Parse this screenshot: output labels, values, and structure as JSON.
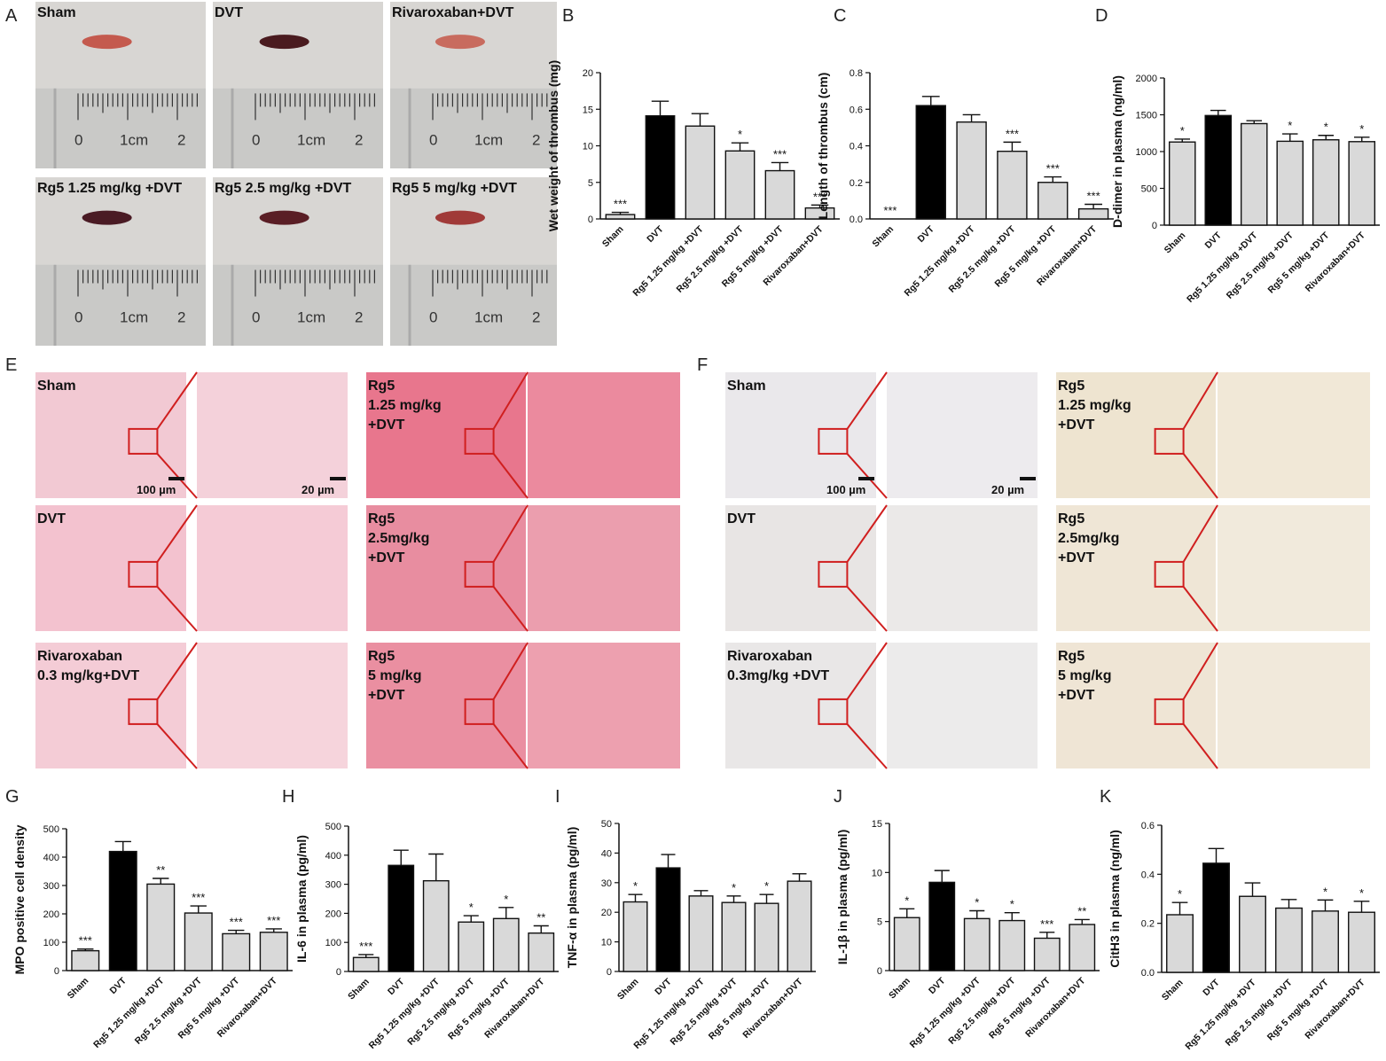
{
  "panel_letters": [
    "A",
    "B",
    "C",
    "D",
    "E",
    "F",
    "G",
    "H",
    "I",
    "J",
    "K"
  ],
  "photo_panels": {
    "labels": [
      "Sham",
      "DVT",
      "Rivaroxaban+DVT",
      "Rg5 1.25 mg/kg +DVT",
      "Rg5 2.5 mg/kg +DVT",
      "Rg5 5 mg/kg +DVT"
    ],
    "ruler_labels": [
      "0",
      "1cm",
      "2"
    ]
  },
  "histology_E": {
    "labels": [
      "Sham",
      "Rg5\n1.25 mg/kg\n+DVT",
      "DVT",
      "Rg5\n2.5mg/kg\n+DVT",
      "Rivaroxaban\n0.3 mg/kg+DVT",
      "Rg5\n5 mg/kg\n+DVT"
    ],
    "scale_bars": [
      "100 µm",
      "20 µm"
    ]
  },
  "histology_F": {
    "labels": [
      "Sham",
      "Rg5\n1.25 mg/kg\n+DVT",
      "DVT",
      "Rg5\n2.5mg/kg\n+DVT",
      "Rivaroxaban\n0.3mg/kg +DVT",
      "Rg5\n5 mg/kg\n+DVT"
    ],
    "scale_bars": [
      "100 µm",
      "20 µm"
    ]
  },
  "chart_data": [
    {
      "panel": "B",
      "type": "bar",
      "ylabel": "Wet weight of thrombus (mg)",
      "ylim": [
        0,
        20
      ],
      "yticks": [
        0,
        5,
        10,
        15,
        20
      ],
      "categories": [
        "Sham",
        "DVT",
        "Rg5 1.25 mg/kg +DVT",
        "Rg5 2.5 mg/kg +DVT",
        "Rg5 5 mg/kg +DVT",
        "Rivaroxaban+DVT"
      ],
      "values": [
        0.6,
        14.1,
        12.7,
        9.3,
        6.6,
        1.5
      ],
      "errors": [
        0.3,
        2.0,
        1.7,
        1.1,
        1.1,
        0.4
      ],
      "significance": [
        "***",
        "",
        "",
        "*",
        "***",
        "***"
      ],
      "colors": [
        "#d9d9d9",
        "#000000",
        "#d9d9d9",
        "#d9d9d9",
        "#d9d9d9",
        "#d9d9d9"
      ]
    },
    {
      "panel": "C",
      "type": "bar",
      "ylabel": "Length of thrombus (cm)",
      "ylim": [
        0,
        0.8
      ],
      "yticks": [
        "0.0",
        "0.2",
        "0.4",
        "0.6",
        "0.8"
      ],
      "categories": [
        "Sham",
        "DVT",
        "Rg5 1.25 mg/kg +DVT",
        "Rg5 2.5 mg/kg +DVT",
        "Rg5 5 mg/kg +DVT",
        "Rivaroxaban+DVT"
      ],
      "values": [
        0.0,
        0.62,
        0.53,
        0.37,
        0.2,
        0.055
      ],
      "errors": [
        0,
        0.05,
        0.04,
        0.05,
        0.03,
        0.025
      ],
      "significance": [
        "***",
        "",
        "",
        "***",
        "***",
        "***"
      ],
      "colors": [
        "#d9d9d9",
        "#000000",
        "#d9d9d9",
        "#d9d9d9",
        "#d9d9d9",
        "#d9d9d9"
      ]
    },
    {
      "panel": "D",
      "type": "bar",
      "ylabel": "D-dimer in plasma (ng/ml)",
      "ylim": [
        0,
        2000
      ],
      "yticks": [
        0,
        500,
        1000,
        1500,
        2000
      ],
      "categories": [
        "Sham",
        "DVT",
        "Rg5 1.25 mg/kg +DVT",
        "Rg5 2.5 mg/kg +DVT",
        "Rg5 5 mg/kg +DVT",
        "Rivaroxaban+DVT"
      ],
      "values": [
        1130,
        1490,
        1380,
        1140,
        1160,
        1135
      ],
      "errors": [
        40,
        70,
        40,
        100,
        60,
        60
      ],
      "significance": [
        "*",
        "",
        "",
        "*",
        "*",
        "*"
      ],
      "colors": [
        "#d9d9d9",
        "#000000",
        "#d9d9d9",
        "#d9d9d9",
        "#d9d9d9",
        "#d9d9d9"
      ]
    },
    {
      "panel": "G",
      "type": "bar",
      "ylabel": "MPO positive cell density",
      "ylim": [
        0,
        500
      ],
      "yticks": [
        0,
        100,
        200,
        300,
        400,
        500
      ],
      "categories": [
        "Sham",
        "DVT",
        "Rg5 1.25 mg/kg +DVT",
        "Rg5 2.5 mg/kg +DVT",
        "Rg5 5 mg/kg +DVT",
        "Rivaroxaban+DVT"
      ],
      "values": [
        70,
        420,
        305,
        203,
        130,
        135
      ],
      "errors": [
        6,
        35,
        20,
        25,
        12,
        12
      ],
      "significance": [
        "***",
        "",
        "**",
        "***",
        "***",
        "***"
      ],
      "colors": [
        "#d9d9d9",
        "#000000",
        "#d9d9d9",
        "#d9d9d9",
        "#d9d9d9",
        "#d9d9d9"
      ]
    },
    {
      "panel": "H",
      "type": "bar",
      "ylabel": "IL-6 in plasma (pg/ml)",
      "ylim": [
        0,
        500
      ],
      "yticks": [
        0,
        100,
        200,
        300,
        400,
        500
      ],
      "categories": [
        "Sham",
        "DVT",
        "Rg5 1.25 mg/kg +DVT",
        "Rg5 2.5 mg/kg +DVT",
        "Rg5 5 mg/kg +DVT",
        "Rivaroxaban+DVT"
      ],
      "values": [
        48,
        365,
        312,
        170,
        182,
        132
      ],
      "errors": [
        10,
        52,
        92,
        22,
        38,
        25
      ],
      "significance": [
        "***",
        "",
        "",
        "*",
        "*",
        "**"
      ],
      "colors": [
        "#d9d9d9",
        "#000000",
        "#d9d9d9",
        "#d9d9d9",
        "#d9d9d9",
        "#d9d9d9"
      ]
    },
    {
      "panel": "I",
      "type": "bar",
      "ylabel": "TNF-α in plasma (pg/ml)",
      "ylim": [
        0,
        50
      ],
      "yticks": [
        0,
        10,
        20,
        30,
        40,
        50
      ],
      "categories": [
        "Sham",
        "DVT",
        "Rg5 1.25 mg/kg +DVT",
        "Rg5 2.5 mg/kg +DVT",
        "Rg5 5 mg/kg +DVT",
        "Rivaroxaban+DVT"
      ],
      "values": [
        23.5,
        35,
        25.5,
        23.3,
        23,
        30.5
      ],
      "errors": [
        2.5,
        4.5,
        1.8,
        2.2,
        3.0,
        2.5
      ],
      "significance": [
        "*",
        "",
        "",
        "*",
        "*",
        ""
      ],
      "colors": [
        "#d9d9d9",
        "#000000",
        "#d9d9d9",
        "#d9d9d9",
        "#d9d9d9",
        "#d9d9d9"
      ]
    },
    {
      "panel": "J",
      "type": "bar",
      "ylabel": "IL-1β in plasma (pg/ml)",
      "ylim": [
        0,
        15
      ],
      "yticks": [
        0,
        5,
        10,
        15
      ],
      "categories": [
        "Sham",
        "DVT",
        "Rg5 1.25 mg/kg +DVT",
        "Rg5 2.5 mg/kg +DVT",
        "Rg5 5 mg/kg +DVT",
        "Rivaroxaban+DVT"
      ],
      "values": [
        5.4,
        9.0,
        5.3,
        5.1,
        3.3,
        4.7
      ],
      "errors": [
        0.9,
        1.2,
        0.8,
        0.8,
        0.6,
        0.5
      ],
      "significance": [
        "*",
        "",
        "*",
        "*",
        "***",
        "**"
      ],
      "colors": [
        "#d9d9d9",
        "#000000",
        "#d9d9d9",
        "#d9d9d9",
        "#d9d9d9",
        "#d9d9d9"
      ]
    },
    {
      "panel": "K",
      "type": "bar",
      "ylabel": "CitH3 in plasma (ng/ml)",
      "ylim": [
        0,
        0.6
      ],
      "yticks": [
        "0.0",
        "0.2",
        "0.4",
        "0.6"
      ],
      "categories": [
        "Sham",
        "DVT",
        "Rg5 1.25 mg/kg +DVT",
        "Rg5 2.5 mg/kg +DVT",
        "Rg5 5 mg/kg +DVT",
        "Rivaroxaban+DVT"
      ],
      "values": [
        0.235,
        0.445,
        0.31,
        0.262,
        0.25,
        0.245
      ],
      "errors": [
        0.05,
        0.06,
        0.055,
        0.035,
        0.045,
        0.045
      ],
      "significance": [
        "*",
        "",
        "",
        "",
        "*",
        "*"
      ],
      "colors": [
        "#d9d9d9",
        "#000000",
        "#d9d9d9",
        "#d9d9d9",
        "#d9d9d9",
        "#d9d9d9"
      ]
    }
  ]
}
